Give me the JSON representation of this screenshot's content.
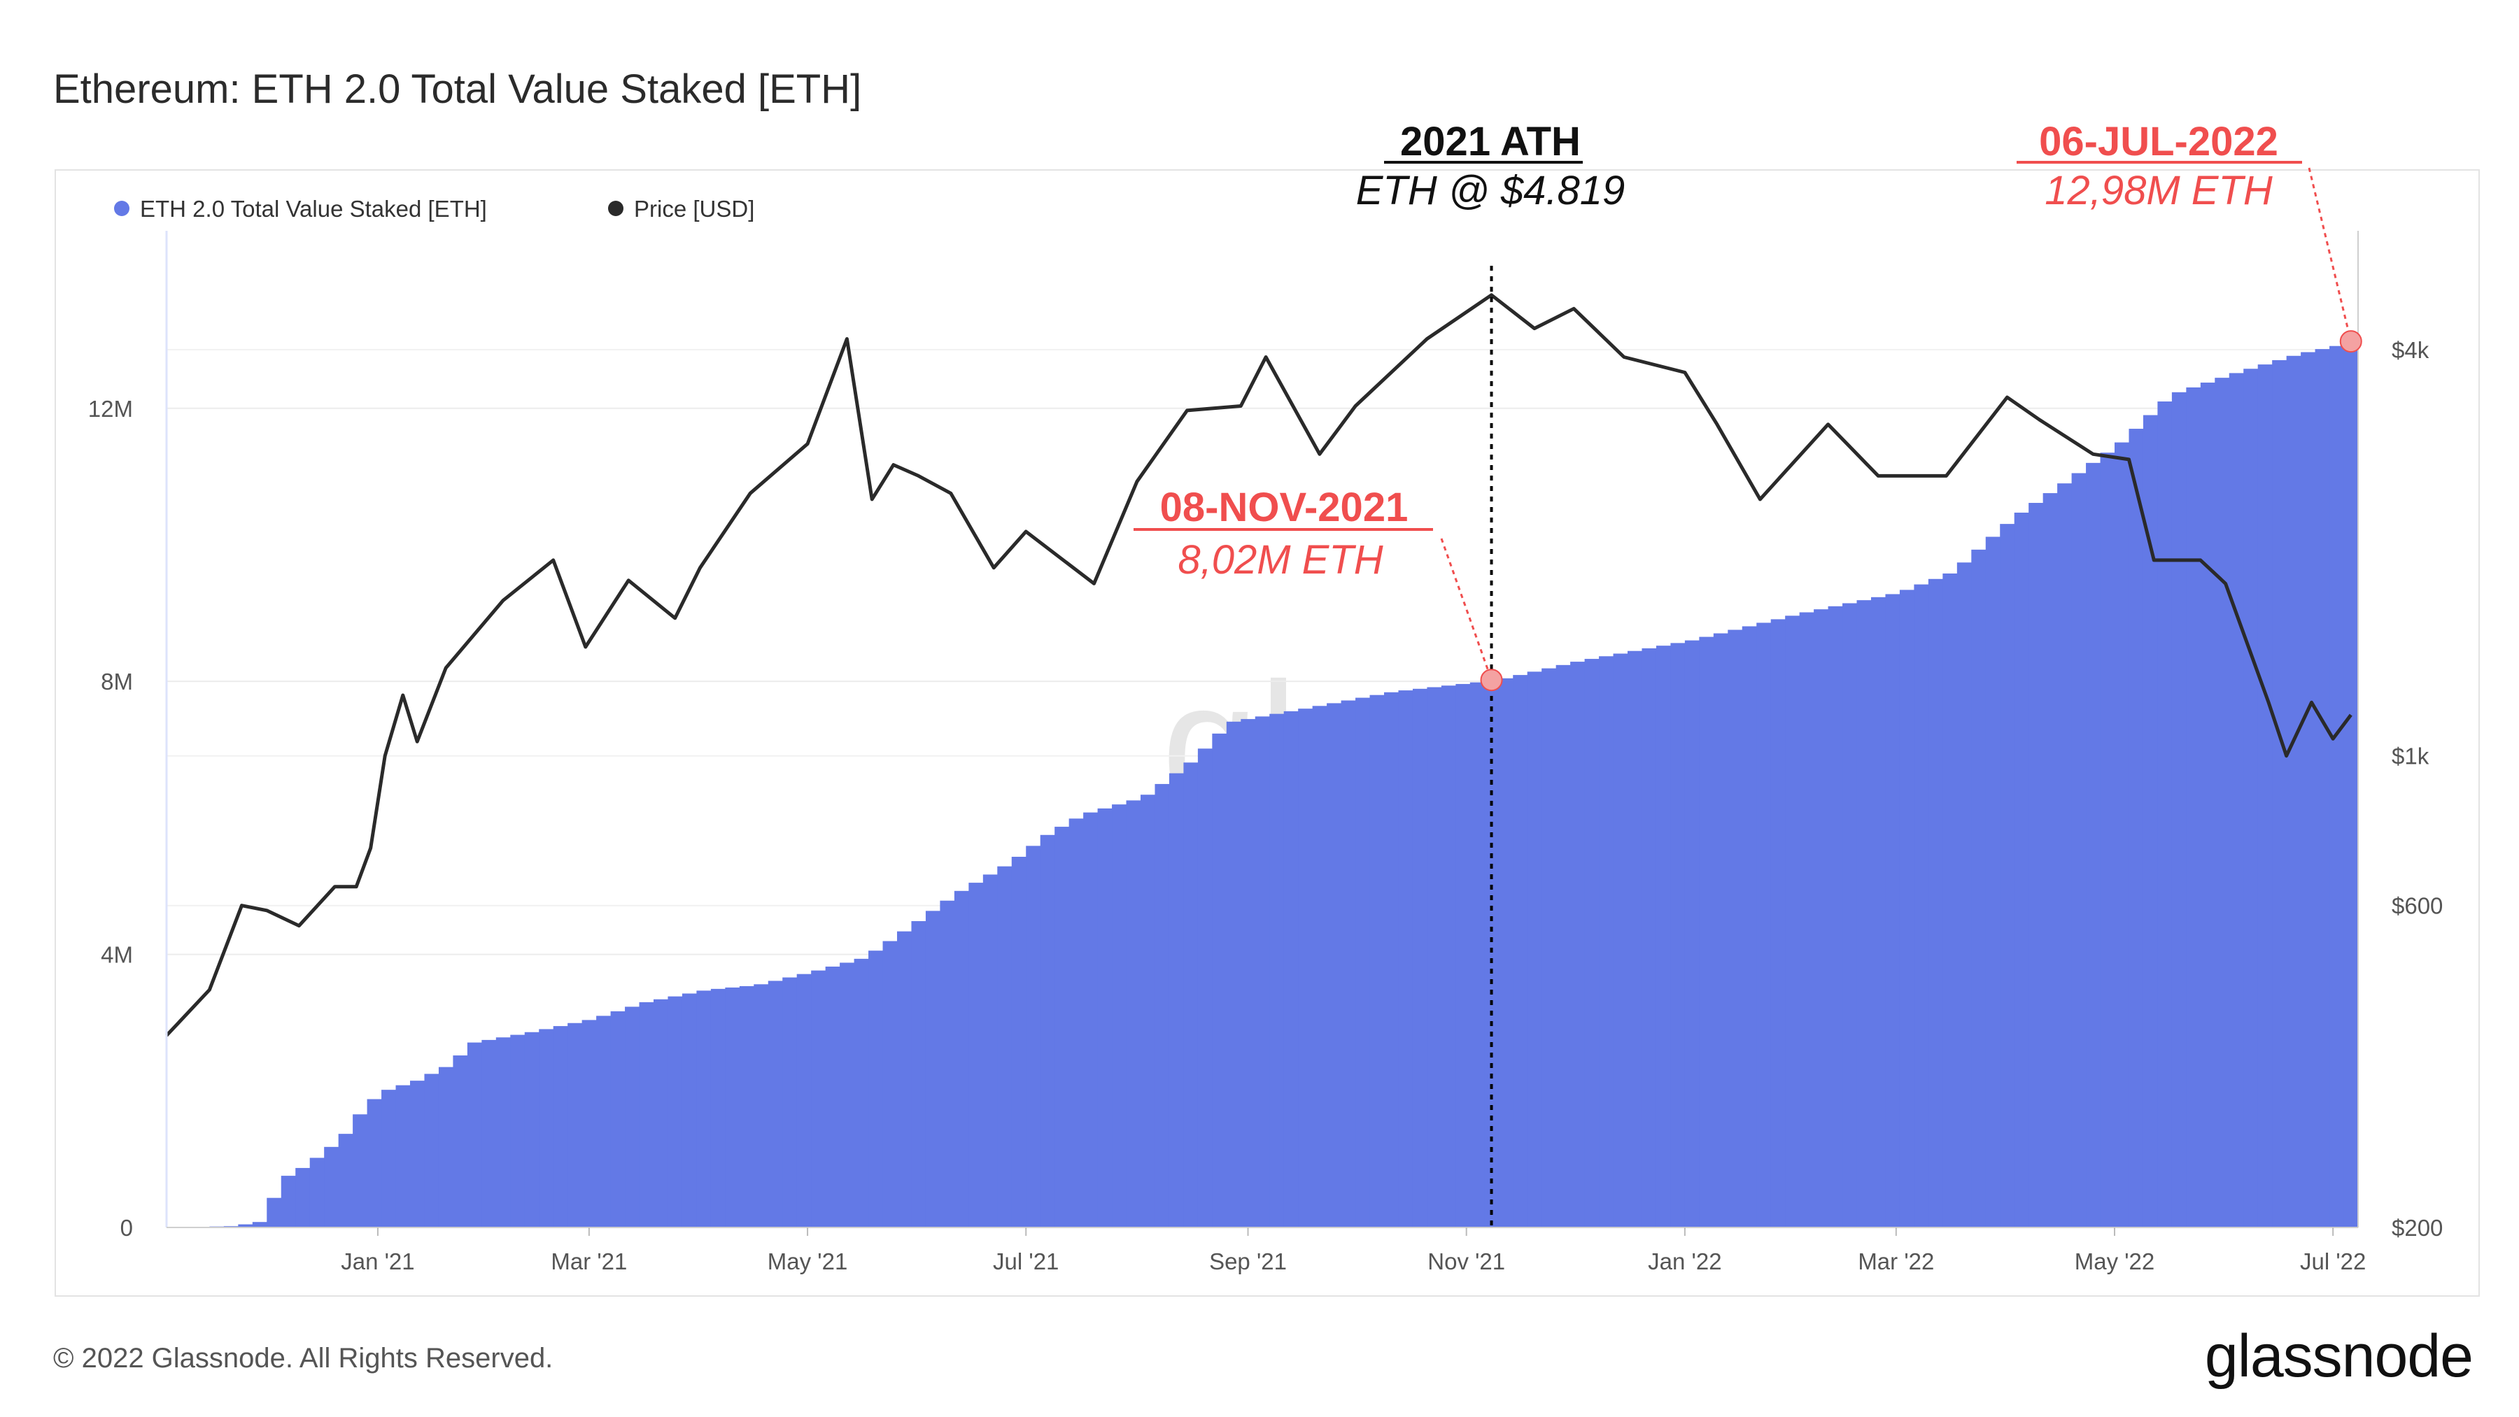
{
  "header": {
    "title": "Ethereum: ETH 2.0 Total Value Staked [ETH]"
  },
  "footer": {
    "copyright": "© 2022 Glassnode. All Rights Reserved.",
    "logo": "glassnode"
  },
  "watermark": "glassnode",
  "colors": {
    "staked": "#6379e6",
    "price": "#2a2a2a",
    "accent": "#f04e4e"
  },
  "annotations": {
    "ath": {
      "title": "2021 ATH",
      "subtitle": "ETH @ $4.819"
    },
    "nov": {
      "title": "08-NOV-2021",
      "subtitle": "8,02M ETH"
    },
    "jul": {
      "title": "06-JUL-2022",
      "subtitle": "12,98M ETH"
    }
  },
  "chart_data": {
    "type": "area",
    "title": "Ethereum: ETH 2.0 Total Value Staked [ETH]",
    "legend_position": "top-left",
    "grid": true,
    "x_range": [
      "2020-11-03",
      "2022-07-08"
    ],
    "x_ticks": [
      {
        "date": "2021-01-01",
        "label": "Jan '21"
      },
      {
        "date": "2021-03-01",
        "label": "Mar '21"
      },
      {
        "date": "2021-05-01",
        "label": "May '21"
      },
      {
        "date": "2021-07-01",
        "label": "Jul '21"
      },
      {
        "date": "2021-09-01",
        "label": "Sep '21"
      },
      {
        "date": "2021-11-01",
        "label": "Nov '21"
      },
      {
        "date": "2022-01-01",
        "label": "Jan '22"
      },
      {
        "date": "2022-03-01",
        "label": "Mar '22"
      },
      {
        "date": "2022-05-01",
        "label": "May '22"
      },
      {
        "date": "2022-07-01",
        "label": "Jul '22"
      }
    ],
    "y_left": {
      "min": 0,
      "max": 14600000,
      "ticks": [
        {
          "value": 0,
          "label": "0"
        },
        {
          "value": 4000000,
          "label": "4M"
        },
        {
          "value": 8000000,
          "label": "8M"
        },
        {
          "value": 12000000,
          "label": "12M"
        }
      ]
    },
    "y_right": {
      "scale": "log",
      "min": 200,
      "max": 6000,
      "ticks": [
        {
          "value": 200,
          "label": "$200"
        },
        {
          "value": 600,
          "label": "$600"
        },
        {
          "value": 1000,
          "label": "$1k"
        },
        {
          "value": 4000,
          "label": "$4k"
        }
      ]
    },
    "series": [
      {
        "name": "ETH 2.0 Total Value Staked [ETH]",
        "axis": "left",
        "points": [
          [
            "2020-11-03",
            0
          ],
          [
            "2020-11-20",
            20000
          ],
          [
            "2020-11-27",
            80000
          ],
          [
            "2020-11-30",
            300000
          ],
          [
            "2020-12-03",
            700000
          ],
          [
            "2020-12-10",
            900000
          ],
          [
            "2020-12-20",
            1300000
          ],
          [
            "2020-12-27",
            1800000
          ],
          [
            "2021-01-01",
            2000000
          ],
          [
            "2021-01-10",
            2150000
          ],
          [
            "2021-01-20",
            2400000
          ],
          [
            "2021-01-25",
            2700000
          ],
          [
            "2021-02-10",
            2850000
          ],
          [
            "2021-02-28",
            3050000
          ],
          [
            "2021-03-15",
            3300000
          ],
          [
            "2021-04-01",
            3480000
          ],
          [
            "2021-04-15",
            3550000
          ],
          [
            "2021-05-01",
            3750000
          ],
          [
            "2021-05-15",
            3950000
          ],
          [
            "2021-05-25",
            4300000
          ],
          [
            "2021-06-10",
            4900000
          ],
          [
            "2021-06-25",
            5350000
          ],
          [
            "2021-07-05",
            5750000
          ],
          [
            "2021-07-15",
            6050000
          ],
          [
            "2021-08-01",
            6300000
          ],
          [
            "2021-08-15",
            6850000
          ],
          [
            "2021-08-25",
            7400000
          ],
          [
            "2021-09-15",
            7600000
          ],
          [
            "2021-10-10",
            7850000
          ],
          [
            "2021-11-08",
            8020000
          ],
          [
            "2021-12-01",
            8300000
          ],
          [
            "2022-01-01",
            8600000
          ],
          [
            "2022-02-01",
            9000000
          ],
          [
            "2022-02-28",
            9300000
          ],
          [
            "2022-03-15",
            9600000
          ],
          [
            "2022-04-01",
            10400000
          ],
          [
            "2022-04-15",
            10900000
          ],
          [
            "2022-05-01",
            11500000
          ],
          [
            "2022-05-15",
            12200000
          ],
          [
            "2022-06-01",
            12500000
          ],
          [
            "2022-06-20",
            12800000
          ],
          [
            "2022-07-06",
            12980000
          ]
        ]
      },
      {
        "name": "Price [USD]",
        "axis": "right",
        "points": [
          [
            "2020-11-03",
            385
          ],
          [
            "2020-11-15",
            450
          ],
          [
            "2020-11-24",
            600
          ],
          [
            "2020-12-01",
            590
          ],
          [
            "2020-12-10",
            560
          ],
          [
            "2020-12-20",
            640
          ],
          [
            "2020-12-26",
            640
          ],
          [
            "2020-12-30",
            730
          ],
          [
            "2021-01-03",
            1000
          ],
          [
            "2021-01-08",
            1230
          ],
          [
            "2021-01-12",
            1050
          ],
          [
            "2021-01-20",
            1350
          ],
          [
            "2021-02-05",
            1700
          ],
          [
            "2021-02-19",
            1950
          ],
          [
            "2021-02-28",
            1450
          ],
          [
            "2021-03-12",
            1820
          ],
          [
            "2021-03-25",
            1600
          ],
          [
            "2021-04-01",
            1900
          ],
          [
            "2021-04-15",
            2450
          ],
          [
            "2021-05-01",
            2900
          ],
          [
            "2021-05-12",
            4150
          ],
          [
            "2021-05-19",
            2400
          ],
          [
            "2021-05-25",
            2700
          ],
          [
            "2021-06-01",
            2600
          ],
          [
            "2021-06-10",
            2450
          ],
          [
            "2021-06-22",
            1900
          ],
          [
            "2021-07-01",
            2150
          ],
          [
            "2021-07-20",
            1800
          ],
          [
            "2021-08-01",
            2550
          ],
          [
            "2021-08-15",
            3250
          ],
          [
            "2021-08-30",
            3300
          ],
          [
            "2021-09-06",
            3900
          ],
          [
            "2021-09-21",
            2800
          ],
          [
            "2021-10-01",
            3300
          ],
          [
            "2021-10-21",
            4150
          ],
          [
            "2021-11-08",
            4819
          ],
          [
            "2021-11-20",
            4300
          ],
          [
            "2021-12-01",
            4600
          ],
          [
            "2021-12-15",
            3900
          ],
          [
            "2022-01-01",
            3700
          ],
          [
            "2022-01-10",
            3100
          ],
          [
            "2022-01-22",
            2400
          ],
          [
            "2022-02-10",
            3100
          ],
          [
            "2022-02-24",
            2600
          ],
          [
            "2022-03-15",
            2600
          ],
          [
            "2022-04-01",
            3400
          ],
          [
            "2022-04-10",
            3150
          ],
          [
            "2022-04-25",
            2800
          ],
          [
            "2022-05-05",
            2750
          ],
          [
            "2022-05-12",
            1950
          ],
          [
            "2022-05-25",
            1950
          ],
          [
            "2022-06-01",
            1800
          ],
          [
            "2022-06-13",
            1200
          ],
          [
            "2022-06-18",
            1000
          ],
          [
            "2022-06-25",
            1200
          ],
          [
            "2022-07-01",
            1060
          ],
          [
            "2022-07-06",
            1150
          ]
        ]
      }
    ]
  }
}
